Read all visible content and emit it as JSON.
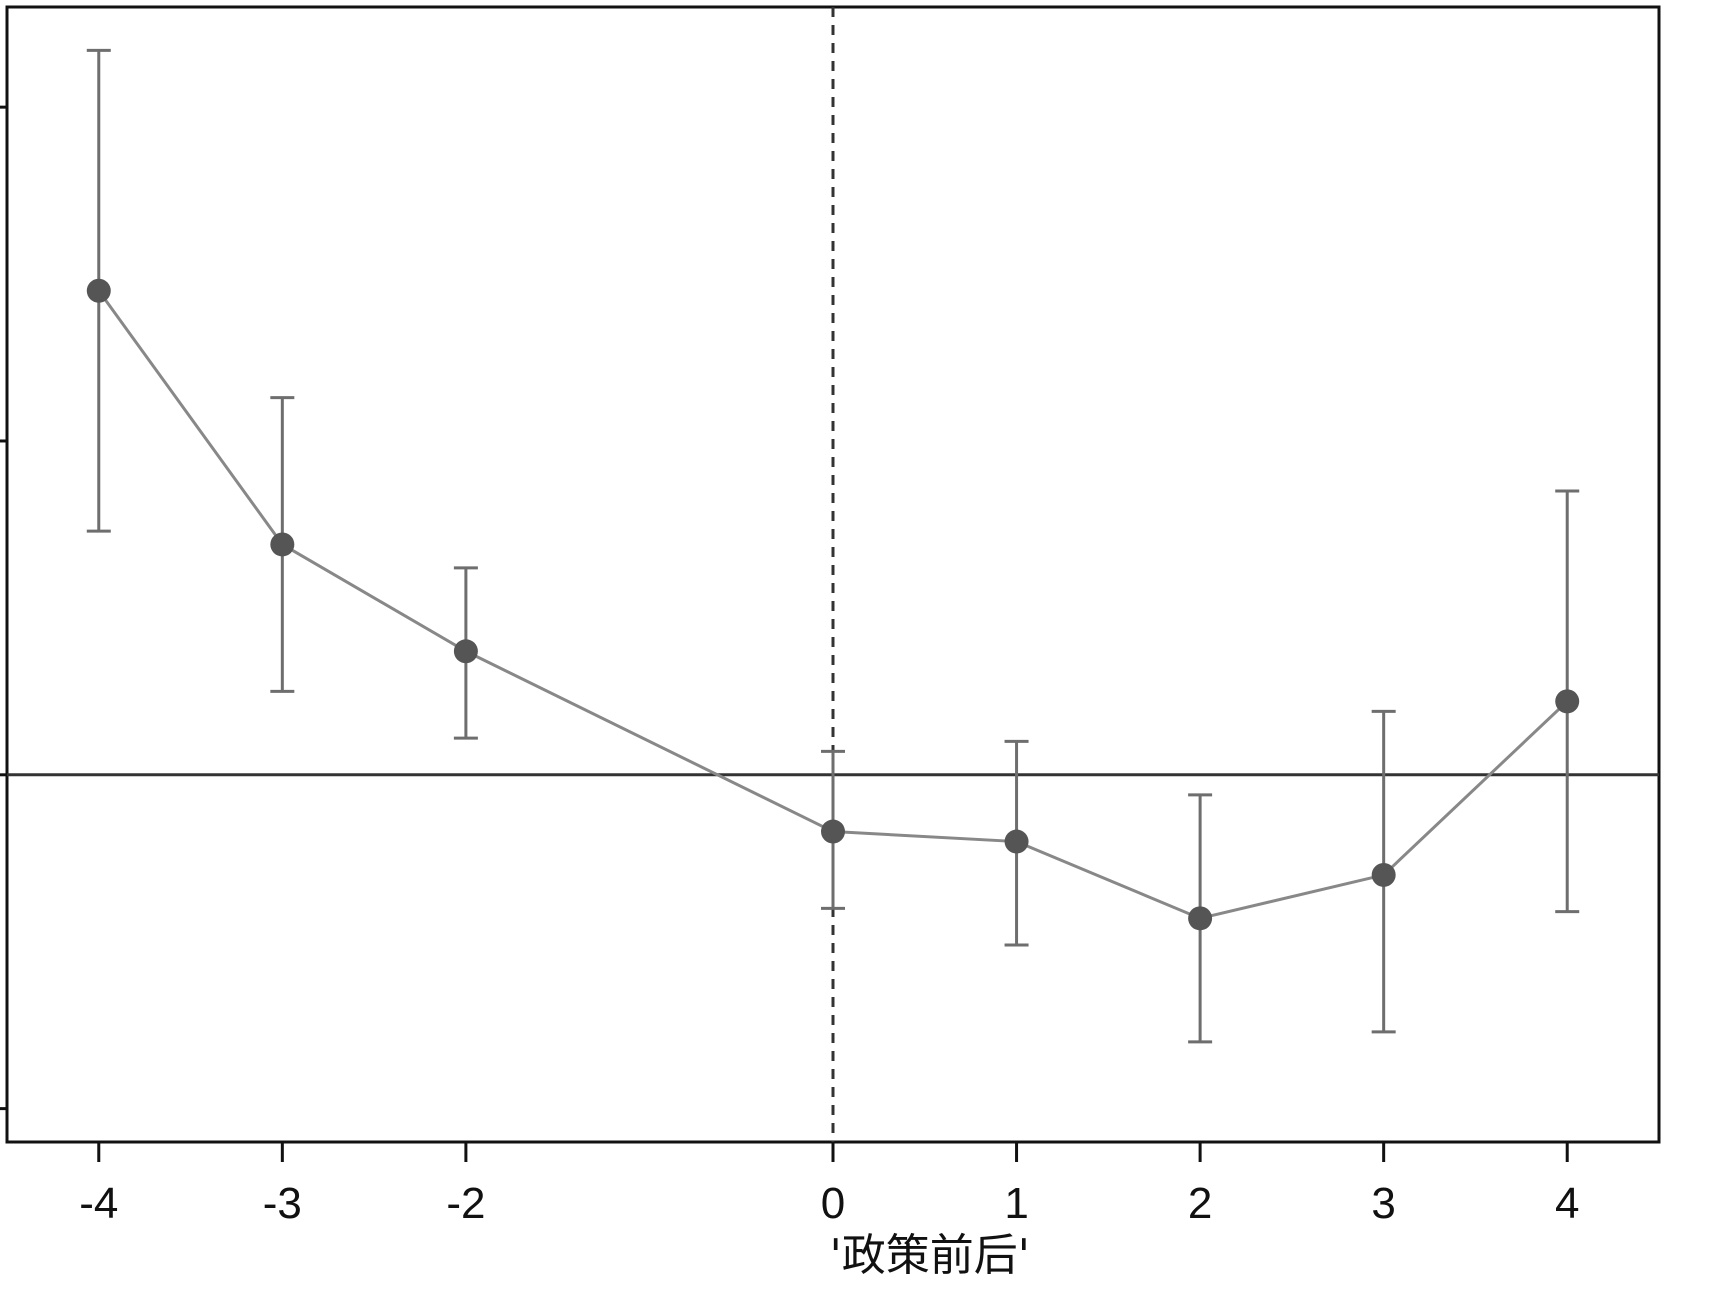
{
  "chart_data": {
    "type": "line",
    "title": "",
    "xlabel": "'政策前后'",
    "ylabel": "",
    "x": [
      -4,
      -3,
      -2,
      0,
      1,
      2,
      3,
      4
    ],
    "x_tick_labels": [
      "-4",
      "-3",
      "-2",
      "0",
      "1",
      "2",
      "3",
      "4"
    ],
    "xlim": [
      -4.5,
      4.5
    ],
    "ylim": [
      -0.11,
      0.23
    ],
    "y_ticks": [
      -0.1,
      0,
      0.1,
      0.2
    ],
    "series": [
      {
        "name": "",
        "estimate": [
          0.145,
          0.069,
          0.037,
          -0.017,
          -0.02,
          -0.043,
          -0.03,
          0.022
        ],
        "ci_low": [
          0.073,
          0.025,
          0.011,
          -0.04,
          -0.051,
          -0.08,
          -0.077,
          -0.041
        ],
        "ci_high": [
          0.217,
          0.113,
          0.062,
          0.007,
          0.01,
          -0.006,
          0.019,
          0.085
        ]
      }
    ],
    "reference_lines": {
      "horizontal_y": 0,
      "vertical_x": 0
    },
    "colors": {
      "line": "#888888",
      "marker": "#555555",
      "errorbar": "#6e6e6e",
      "reference": "#333333"
    },
    "grid": false,
    "legend": "none"
  }
}
